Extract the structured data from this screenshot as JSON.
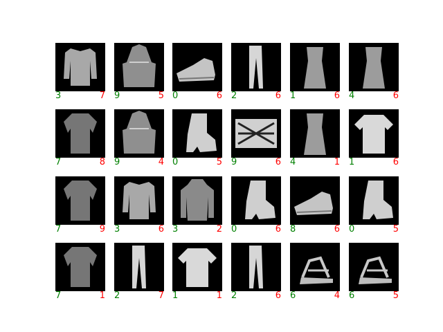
{
  "grid": {
    "rows": 4,
    "cols": 6,
    "true_color": "#008000",
    "pred_color": "#ff0000",
    "cells": [
      {
        "item": "long-sleeve-top",
        "true_label": "3",
        "pred_label": "7"
      },
      {
        "item": "handbag",
        "true_label": "9",
        "pred_label": "5"
      },
      {
        "item": "sneaker",
        "true_label": "0",
        "pred_label": "6"
      },
      {
        "item": "trousers",
        "true_label": "2",
        "pred_label": "6"
      },
      {
        "item": "dress",
        "true_label": "1",
        "pred_label": "6"
      },
      {
        "item": "dress",
        "true_label": "4",
        "pred_label": "6"
      },
      {
        "item": "shirt",
        "true_label": "7",
        "pred_label": "8"
      },
      {
        "item": "handbag",
        "true_label": "9",
        "pred_label": "4"
      },
      {
        "item": "ankle-boot",
        "true_label": "0",
        "pred_label": "5"
      },
      {
        "item": "patterned-bag",
        "true_label": "9",
        "pred_label": "6"
      },
      {
        "item": "dress",
        "true_label": "4",
        "pred_label": "1"
      },
      {
        "item": "t-shirt",
        "true_label": "1",
        "pred_label": "6"
      },
      {
        "item": "shirt",
        "true_label": "7",
        "pred_label": "9"
      },
      {
        "item": "long-sleeve-top",
        "true_label": "3",
        "pred_label": "6"
      },
      {
        "item": "hoodie",
        "true_label": "3",
        "pred_label": "2"
      },
      {
        "item": "ankle-boot",
        "true_label": "0",
        "pred_label": "6"
      },
      {
        "item": "sneaker",
        "true_label": "8",
        "pred_label": "6"
      },
      {
        "item": "ankle-boot",
        "true_label": "0",
        "pred_label": "5"
      },
      {
        "item": "shirt",
        "true_label": "7",
        "pred_label": "1"
      },
      {
        "item": "trousers",
        "true_label": "2",
        "pred_label": "7"
      },
      {
        "item": "t-shirt",
        "true_label": "1",
        "pred_label": "1"
      },
      {
        "item": "trousers",
        "true_label": "2",
        "pred_label": "6"
      },
      {
        "item": "sandal",
        "true_label": "6",
        "pred_label": "4"
      },
      {
        "item": "sandal",
        "true_label": "6",
        "pred_label": "5"
      }
    ]
  }
}
